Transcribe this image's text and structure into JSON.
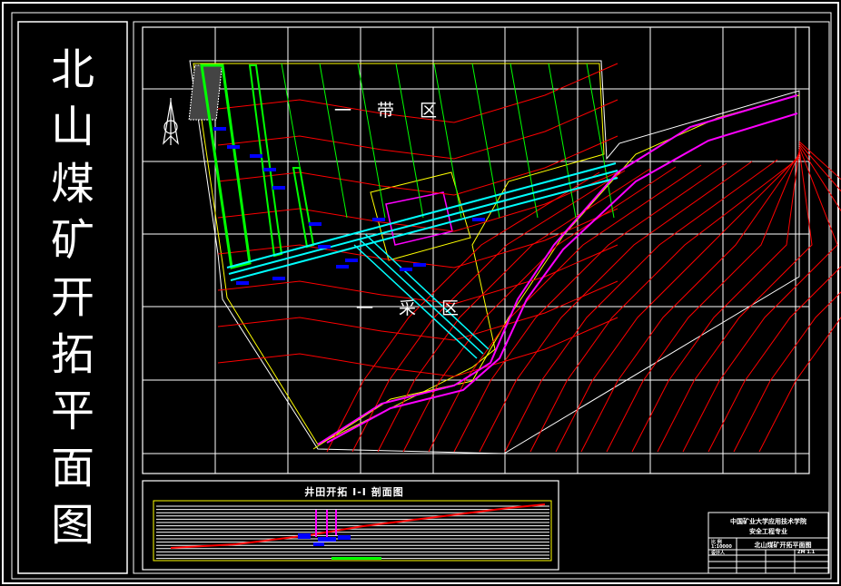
{
  "drawing_title": [
    "北",
    "山",
    "煤",
    "矿",
    "开",
    "拓",
    "平",
    "面",
    "图"
  ],
  "map": {
    "zone_upper_label": "一带区",
    "zone_lower_label": "一采区",
    "north_arrow": "north-arrow-icon"
  },
  "section": {
    "title": "井田开拓 I-I 剖面图"
  },
  "title_block": {
    "institution": "中国矿业大学应用技术学院",
    "major": "安全工程专业",
    "scale_label": "比 例",
    "scale_value": "1:10000",
    "designer_label": "设计人",
    "drawing_name": "北山煤矿开拓平面图",
    "drawing_number": "ZM 1.1"
  },
  "colors": {
    "contour": "#ff0000",
    "boundary": "#ffff00",
    "panel": "#00ff00",
    "roadway": "#00ffff",
    "fault": "#ff00ff",
    "label": "#0000ff",
    "frame": "#ffffff"
  }
}
